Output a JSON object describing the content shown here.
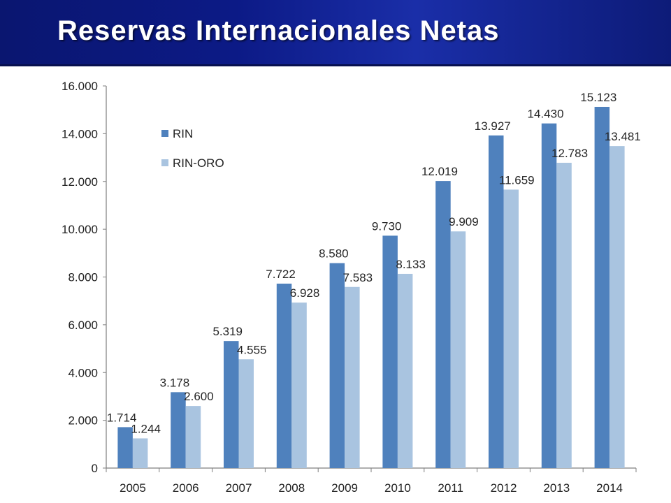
{
  "header": {
    "title": "Reservas Internacionales Netas"
  },
  "colors": {
    "rin": "#4f81bd",
    "rin_oro": "#a9c4e0",
    "title_bar": "#0c1a86"
  },
  "chart_data": {
    "type": "bar",
    "title": "Reservas Internacionales Netas",
    "xlabel": "",
    "ylabel": "",
    "ylim": [
      0,
      16000
    ],
    "yticks": [
      "0",
      "2.000",
      "4.000",
      "6.000",
      "8.000",
      "10.000",
      "12.000",
      "14.000",
      "16.000"
    ],
    "grid": false,
    "legend_position": "top-left",
    "categories": [
      "2005",
      "2006",
      "2007",
      "2008",
      "2009",
      "2010",
      "2011",
      "2012",
      "2013",
      "2014"
    ],
    "series": [
      {
        "name": "RIN",
        "color": "#4f81bd",
        "values": [
          1714,
          3178,
          5319,
          7722,
          8580,
          9730,
          12019,
          13927,
          14430,
          15123
        ],
        "labels": [
          "1.714",
          "3.178",
          "5.319",
          "7.722",
          "8.580",
          "9.730",
          "12.019",
          "13.927",
          "14.430",
          "15.123"
        ]
      },
      {
        "name": "RIN-ORO",
        "color": "#a9c4e0",
        "values": [
          1244,
          2600,
          4555,
          6928,
          7583,
          8133,
          9909,
          11659,
          12783,
          13481
        ],
        "labels": [
          "1.244",
          "2.600",
          "4.555",
          "6.928",
          "7.583",
          "8.133",
          "9.909",
          "11.659",
          "12.783",
          "13.481"
        ]
      }
    ]
  }
}
